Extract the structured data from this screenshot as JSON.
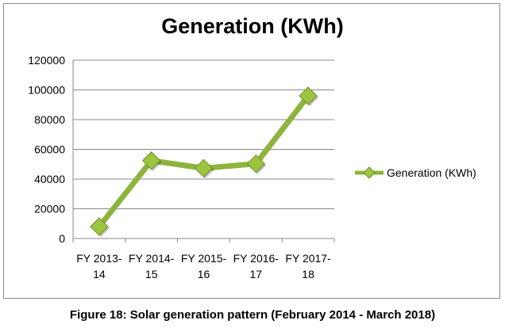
{
  "chart_data": {
    "type": "line",
    "title": "Generation (KWh)",
    "categories": [
      "FY 2013-\n14",
      "FY 2014-\n15",
      "FY 2015-\n16",
      "FY 2016-\n17",
      "FY 2017-\n18"
    ],
    "series": [
      {
        "name": "Generation (KWh)",
        "values": [
          8000,
          52400,
          47300,
          50300,
          96000
        ],
        "color": "#8db43c"
      }
    ],
    "ylim": [
      0,
      120000
    ],
    "yticks": [
      0,
      20000,
      40000,
      60000,
      80000,
      100000,
      120000
    ],
    "grid": true,
    "legend": "right",
    "xlabel": "",
    "ylabel": ""
  },
  "caption": "Figure 18: Solar generation pattern (February 2014 - March 2018)"
}
